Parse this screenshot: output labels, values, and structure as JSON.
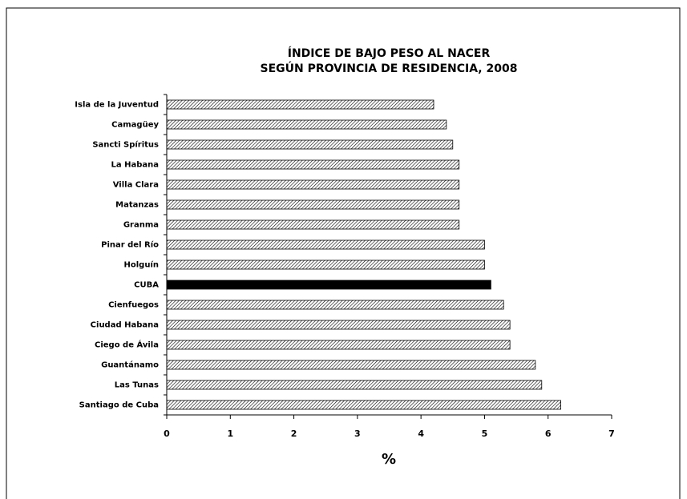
{
  "chart_data": {
    "type": "barh",
    "title": [
      "ÍNDICE DE BAJO PESO AL NACER",
      "SEGÚN PROVINCIA DE RESIDENCIA, 2008"
    ],
    "xlabel": "%",
    "categories": [
      "Isla de la Juventud",
      "Camagüey",
      "Sancti Spíritus",
      "La Habana",
      "Villa Clara",
      "Matanzas",
      "Granma",
      "Pinar del Río",
      "Holguín",
      "CUBA",
      "Cienfuegos",
      "Ciudad Habana",
      "Ciego de Ávila",
      "Guantánamo",
      "Las Tunas",
      "Santiago de Cuba"
    ],
    "values": [
      4.2,
      4.4,
      4.5,
      4.6,
      4.6,
      4.6,
      4.6,
      5.0,
      5.0,
      5.1,
      5.3,
      5.4,
      5.4,
      5.8,
      5.9,
      6.2
    ],
    "colors": [
      "hatch",
      "hatch",
      "hatch",
      "hatch",
      "hatch",
      "hatch",
      "hatch",
      "hatch",
      "hatch",
      "#000000",
      "hatch",
      "hatch",
      "hatch",
      "hatch",
      "hatch",
      "hatch"
    ],
    "xlim": [
      0,
      7
    ],
    "xticks": [
      0,
      1,
      2,
      3,
      4,
      5,
      6,
      7
    ],
    "grid": false
  }
}
